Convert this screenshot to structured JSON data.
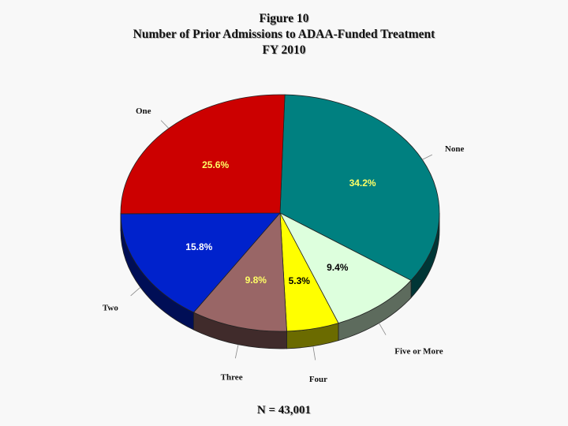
{
  "title": {
    "line1": "Figure 10",
    "line2": "Number of Prior Admissions to ADAA-Funded Treatment",
    "line3": "FY 2010"
  },
  "footnote": "N = 43,001",
  "chart_data": {
    "type": "pie",
    "style": "3d",
    "slices": [
      {
        "label": "None",
        "value": 34.2,
        "value_label": "34.2%",
        "color": "#008080",
        "text_color": "#ffff66"
      },
      {
        "label": "Five or More",
        "value": 9.4,
        "value_label": "9.4%",
        "color": "#ddffdd",
        "text_color": "#000000"
      },
      {
        "label": "Four",
        "value": 5.3,
        "value_label": "5.3%",
        "color": "#ffff00",
        "text_color": "#000000"
      },
      {
        "label": "Three",
        "value": 9.8,
        "value_label": "9.8%",
        "color": "#996666",
        "text_color": "#ffff66"
      },
      {
        "label": "Two",
        "value": 15.8,
        "value_label": "15.8%",
        "color": "#0022cc",
        "text_color": "#ffffff"
      },
      {
        "label": "One",
        "value": 25.6,
        "value_label": "25.6%",
        "color": "#cc0000",
        "text_color": "#ffff66"
      }
    ]
  }
}
